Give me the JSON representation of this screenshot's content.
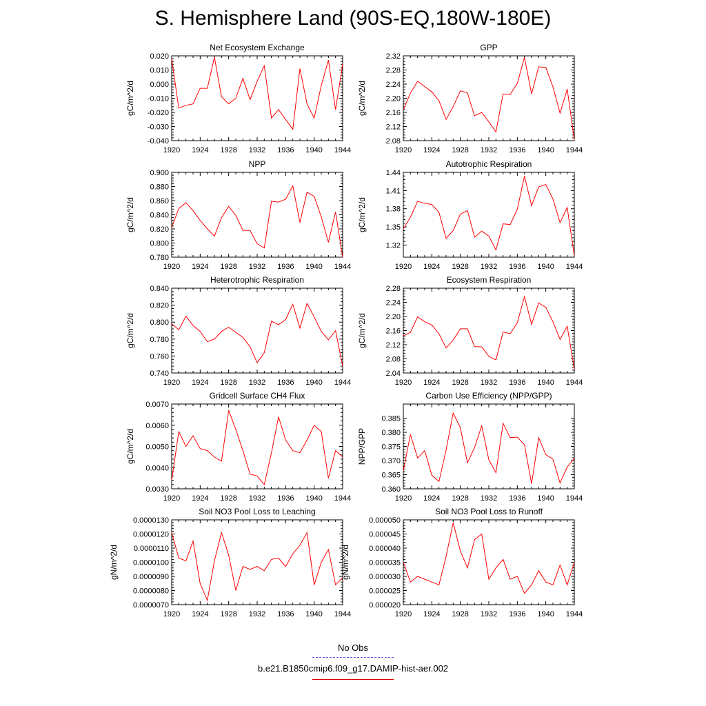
{
  "title": "S. Hemisphere Land (90S-EQ,180W-180E)",
  "legend": {
    "items": [
      {
        "label": "No Obs",
        "color": "#5555dd",
        "dash": "dashed"
      },
      {
        "label": "b.e21.B1850cmip6.f09_g17.DAMIP-hist-aer.002",
        "color": "#dd0000",
        "dash": "solid"
      }
    ]
  },
  "series_color": "#ff0000",
  "chart_data": [
    {
      "type": "line",
      "title": "Net Ecosystem Exchange",
      "ylabel": "gC/m^2/d",
      "xlim": [
        1920,
        1944
      ],
      "ylim": [
        -0.04,
        0.02
      ],
      "xticks": [
        "1920",
        "1924",
        "1928",
        "1932",
        "1936",
        "1940",
        "1944"
      ],
      "yticks": [
        "-0.040",
        "-0.030",
        "-0.020",
        "-0.010",
        "0.000",
        "0.010",
        "0.020"
      ],
      "x": [
        1920,
        1921,
        1922,
        1923,
        1924,
        1925,
        1926,
        1927,
        1928,
        1929,
        1930,
        1931,
        1932,
        1933,
        1934,
        1935,
        1936,
        1937,
        1938,
        1939,
        1940,
        1941,
        1942,
        1943,
        1944
      ],
      "values": [
        0.018,
        -0.017,
        -0.015,
        -0.014,
        -0.003,
        -0.003,
        0.019,
        -0.009,
        -0.014,
        -0.01,
        0.004,
        -0.011,
        0.002,
        0.013,
        -0.024,
        -0.018,
        -0.025,
        -0.032,
        0.011,
        -0.014,
        -0.024,
        -0.001,
        0.017,
        -0.018,
        0.014
      ]
    },
    {
      "type": "line",
      "title": "GPP",
      "ylabel": "gC/m^2/d",
      "xlim": [
        1920,
        1944
      ],
      "ylim": [
        2.08,
        2.32
      ],
      "xticks": [
        "1920",
        "1924",
        "1928",
        "1932",
        "1936",
        "1940",
        "1944"
      ],
      "yticks": [
        "2.08",
        "2.12",
        "2.16",
        "2.20",
        "2.24",
        "2.28",
        "2.32"
      ],
      "x": [
        1920,
        1921,
        1922,
        1923,
        1924,
        1925,
        1926,
        1927,
        1928,
        1929,
        1930,
        1931,
        1932,
        1933,
        1934,
        1935,
        1936,
        1937,
        1938,
        1939,
        1940,
        1941,
        1942,
        1943,
        1944
      ],
      "values": [
        2.167,
        2.215,
        2.248,
        2.233,
        2.218,
        2.193,
        2.14,
        2.176,
        2.221,
        2.215,
        2.15,
        2.16,
        2.133,
        2.105,
        2.212,
        2.211,
        2.242,
        2.316,
        2.212,
        2.289,
        2.287,
        2.232,
        2.158,
        2.226,
        2.082
      ]
    },
    {
      "type": "line",
      "title": "NPP",
      "ylabel": "gC/m^2/d",
      "xlim": [
        1920,
        1944
      ],
      "ylim": [
        0.78,
        0.9
      ],
      "xticks": [
        "1920",
        "1924",
        "1928",
        "1932",
        "1936",
        "1940",
        "1944"
      ],
      "yticks": [
        "0.780",
        "0.800",
        "0.820",
        "0.840",
        "0.860",
        "0.880",
        "0.900"
      ],
      "x": [
        1920,
        1921,
        1922,
        1923,
        1924,
        1925,
        1926,
        1927,
        1928,
        1929,
        1930,
        1931,
        1932,
        1933,
        1934,
        1935,
        1936,
        1937,
        1938,
        1939,
        1940,
        1941,
        1942,
        1943,
        1944
      ],
      "values": [
        0.822,
        0.849,
        0.857,
        0.846,
        0.832,
        0.82,
        0.81,
        0.836,
        0.852,
        0.839,
        0.818,
        0.818,
        0.799,
        0.793,
        0.859,
        0.858,
        0.862,
        0.881,
        0.829,
        0.872,
        0.866,
        0.837,
        0.801,
        0.844,
        0.78
      ]
    },
    {
      "type": "line",
      "title": "Autotrophic Respiration",
      "ylabel": "gC/m^2/d",
      "xlim": [
        1920,
        1944
      ],
      "ylim": [
        1.3,
        1.44
      ],
      "xticks": [
        "1920",
        "1924",
        "1928",
        "1932",
        "1936",
        "1940",
        "1944"
      ],
      "yticks": [
        "1.32",
        "1.35",
        "1.38",
        "1.41",
        "1.44"
      ],
      "x": [
        1920,
        1921,
        1922,
        1923,
        1924,
        1925,
        1926,
        1927,
        1928,
        1929,
        1930,
        1931,
        1932,
        1933,
        1934,
        1935,
        1936,
        1937,
        1938,
        1939,
        1940,
        1941,
        1942,
        1943,
        1944
      ],
      "values": [
        1.347,
        1.366,
        1.392,
        1.389,
        1.387,
        1.374,
        1.331,
        1.344,
        1.371,
        1.377,
        1.333,
        1.343,
        1.335,
        1.312,
        1.355,
        1.354,
        1.379,
        1.434,
        1.385,
        1.416,
        1.42,
        1.396,
        1.357,
        1.382,
        1.302
      ]
    },
    {
      "type": "line",
      "title": "Heterotrophic Respiration",
      "ylabel": "gC/m^2/d",
      "xlim": [
        1920,
        1944
      ],
      "ylim": [
        0.74,
        0.84
      ],
      "xticks": [
        "1920",
        "1924",
        "1928",
        "1932",
        "1936",
        "1940",
        "1944"
      ],
      "yticks": [
        "0.740",
        "0.760",
        "0.780",
        "0.800",
        "0.820",
        "0.840"
      ],
      "x": [
        1920,
        1921,
        1922,
        1923,
        1924,
        1925,
        1926,
        1927,
        1928,
        1929,
        1930,
        1931,
        1932,
        1933,
        1934,
        1935,
        1936,
        1937,
        1938,
        1939,
        1940,
        1941,
        1942,
        1943,
        1944
      ],
      "values": [
        0.798,
        0.791,
        0.807,
        0.796,
        0.789,
        0.777,
        0.78,
        0.789,
        0.794,
        0.788,
        0.782,
        0.771,
        0.752,
        0.764,
        0.801,
        0.797,
        0.803,
        0.821,
        0.793,
        0.822,
        0.806,
        0.789,
        0.779,
        0.79,
        0.748
      ]
    },
    {
      "type": "line",
      "title": "Ecosystem Respiration",
      "ylabel": "gC/m^2/d",
      "xlim": [
        1920,
        1944
      ],
      "ylim": [
        2.04,
        2.28
      ],
      "xticks": [
        "1920",
        "1924",
        "1928",
        "1932",
        "1936",
        "1940",
        "1944"
      ],
      "yticks": [
        "2.04",
        "2.08",
        "2.12",
        "2.16",
        "2.20",
        "2.24",
        "2.28"
      ],
      "x": [
        1920,
        1921,
        1922,
        1923,
        1924,
        1925,
        1926,
        1927,
        1928,
        1929,
        1930,
        1931,
        1932,
        1933,
        1934,
        1935,
        1936,
        1937,
        1938,
        1939,
        1940,
        1941,
        1942,
        1943,
        1944
      ],
      "values": [
        2.145,
        2.155,
        2.199,
        2.185,
        2.176,
        2.151,
        2.111,
        2.133,
        2.165,
        2.165,
        2.115,
        2.114,
        2.087,
        2.077,
        2.156,
        2.151,
        2.182,
        2.256,
        2.178,
        2.238,
        2.226,
        2.185,
        2.135,
        2.172,
        2.05
      ]
    },
    {
      "type": "line",
      "title": "Gridcell Surface CH4 Flux",
      "ylabel": "gC/m^2/d",
      "xlim": [
        1920,
        1944
      ],
      "ylim": [
        0.003,
        0.007
      ],
      "xticks": [
        "1920",
        "1924",
        "1928",
        "1932",
        "1936",
        "1940",
        "1944"
      ],
      "yticks": [
        "0.0030",
        "0.0040",
        "0.0050",
        "0.0060",
        "0.0070"
      ],
      "x": [
        1920,
        1921,
        1922,
        1923,
        1924,
        1925,
        1926,
        1927,
        1928,
        1929,
        1930,
        1931,
        1932,
        1933,
        1934,
        1935,
        1936,
        1937,
        1938,
        1939,
        1940,
        1941,
        1942,
        1943,
        1944
      ],
      "values": [
        0.0034,
        0.0057,
        0.005,
        0.0055,
        0.0049,
        0.0048,
        0.0045,
        0.0043,
        0.0067,
        0.0058,
        0.0048,
        0.0037,
        0.0036,
        0.0032,
        0.0047,
        0.0064,
        0.0053,
        0.0048,
        0.0047,
        0.0053,
        0.006,
        0.0057,
        0.0035,
        0.0048,
        0.0045
      ]
    },
    {
      "type": "line",
      "title": "Carbon Use Efficiency (NPP/GPP)",
      "ylabel": "NPP/GPP",
      "xlim": [
        1920,
        1944
      ],
      "ylim": [
        0.36,
        0.39
      ],
      "xticks": [
        "1920",
        "1924",
        "1928",
        "1932",
        "1936",
        "1940",
        "1944"
      ],
      "yticks": [
        "0.360",
        "0.365",
        "0.370",
        "0.375",
        "0.380",
        "0.385"
      ],
      "x": [
        1920,
        1921,
        1922,
        1923,
        1924,
        1925,
        1926,
        1927,
        1928,
        1929,
        1930,
        1931,
        1932,
        1933,
        1934,
        1935,
        1936,
        1937,
        1938,
        1939,
        1940,
        1941,
        1942,
        1943,
        1944
      ],
      "values": [
        0.3665,
        0.3792,
        0.3709,
        0.3735,
        0.3648,
        0.3626,
        0.3737,
        0.3868,
        0.3816,
        0.3692,
        0.3746,
        0.3823,
        0.3703,
        0.3657,
        0.3832,
        0.3781,
        0.3783,
        0.3756,
        0.3618,
        0.3781,
        0.3721,
        0.3705,
        0.3621,
        0.3677,
        0.3708
      ]
    },
    {
      "type": "line",
      "title": "Soil NO3 Pool Loss to Leaching",
      "ylabel": "gN/m^2/d",
      "xlim": [
        1920,
        1944
      ],
      "ylim": [
        7e-06,
        1.3e-05
      ],
      "xticks": [
        "1920",
        "1924",
        "1928",
        "1932",
        "1936",
        "1940",
        "1944"
      ],
      "yticks": [
        "0.0000070",
        "0.0000080",
        "0.0000090",
        "0.0000100",
        "0.0000110",
        "0.0000120",
        "0.0000130"
      ],
      "x": [
        1920,
        1921,
        1922,
        1923,
        1924,
        1925,
        1926,
        1927,
        1928,
        1929,
        1930,
        1931,
        1932,
        1933,
        1934,
        1935,
        1936,
        1937,
        1938,
        1939,
        1940,
        1941,
        1942,
        1943,
        1944
      ],
      "values": [
        1.21e-05,
        1.03e-05,
        1.01e-05,
        1.15e-05,
        8.5e-06,
        7.3e-06,
        1.01e-05,
        1.21e-05,
        1.05e-05,
        8e-06,
        9.7e-06,
        9.5e-06,
        9.7e-06,
        9.4e-06,
        1.02e-05,
        1.03e-05,
        9.7e-06,
        1.06e-05,
        1.12e-05,
        1.21e-05,
        8.4e-06,
        1e-05,
        1.09e-05,
        8.4e-06,
        8.9e-06
      ]
    },
    {
      "type": "line",
      "title": "Soil NO3 Pool Loss to Runoff",
      "ylabel": "gN/m^2/d",
      "xlim": [
        1920,
        1944
      ],
      "ylim": [
        2e-05,
        5e-05
      ],
      "xticks": [
        "1920",
        "1924",
        "1928",
        "1932",
        "1936",
        "1940",
        "1944"
      ],
      "yticks": [
        "0.000020",
        "0.000025",
        "0.000030",
        "0.000035",
        "0.000040",
        "0.000045",
        "0.000050"
      ],
      "x": [
        1920,
        1921,
        1922,
        1923,
        1924,
        1925,
        1926,
        1927,
        1928,
        1929,
        1930,
        1931,
        1932,
        1933,
        1934,
        1935,
        1936,
        1937,
        1938,
        1939,
        1940,
        1941,
        1942,
        1943,
        1944
      ],
      "values": [
        3.5e-05,
        2.8e-05,
        3e-05,
        2.9e-05,
        2.8e-05,
        2.7e-05,
        3.7e-05,
        4.9e-05,
        3.9e-05,
        3.3e-05,
        4.3e-05,
        4.5e-05,
        2.9e-05,
        3.3e-05,
        3.6e-05,
        2.9e-05,
        3e-05,
        2.4e-05,
        2.7e-05,
        3.2e-05,
        2.8e-05,
        2.7e-05,
        3.4e-05,
        2.7e-05,
        3.5e-05
      ]
    }
  ]
}
